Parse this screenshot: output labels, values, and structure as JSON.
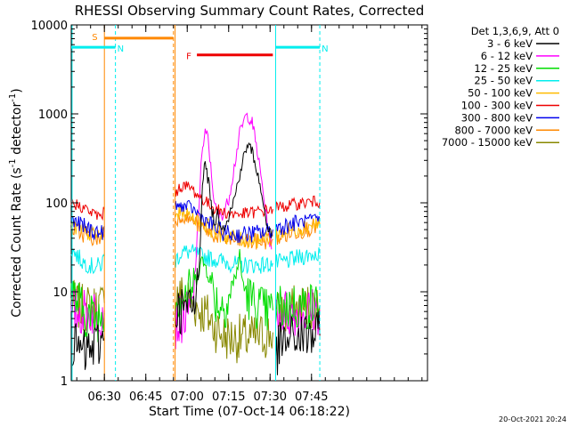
{
  "chart_data": {
    "type": "line",
    "title": "RHESSI Observing Summary Count Rates, Corrected",
    "xlabel": "Start Time (07-Oct-14 06:18:22)",
    "ylabel": "Corrected Count Rate (s⁻¹ detector⁻¹)",
    "ylabel_parts": {
      "main": "Corrected Count Rate (s",
      "exp1": "-1",
      "mid": " detector",
      "exp2": "-1",
      "end": ")"
    },
    "y_scale": "log",
    "ylim": [
      1,
      10000
    ],
    "x_range_min": [
      0,
      129
    ],
    "x_ticks": [
      {
        "label": "06:30",
        "min": 12
      },
      {
        "label": "06:45",
        "min": 27
      },
      {
        "label": "07:00",
        "min": 42
      },
      {
        "label": "07:15",
        "min": 57
      },
      {
        "label": "07:30",
        "min": 72
      },
      {
        "label": "07:45",
        "min": 87
      }
    ],
    "y_ticks": [
      {
        "label": "1",
        "value": 1
      },
      {
        "label": "10",
        "value": 10
      },
      {
        "label": "100",
        "value": 100
      },
      {
        "label": "1000",
        "value": 1000
      },
      {
        "label": "10000",
        "value": 10000
      }
    ],
    "legend": {
      "title": "Det 1,3,6,9, Att 0",
      "entries": [
        {
          "label": "3 - 6 keV",
          "color": "#000000"
        },
        {
          "label": "6 - 12 keV",
          "color": "#ff00ff"
        },
        {
          "label": "12 - 25 keV",
          "color": "#00dd00"
        },
        {
          "label": "25 - 50 keV",
          "color": "#00eeee"
        },
        {
          "label": "50 - 100 keV",
          "color": "#ffbb00"
        },
        {
          "label": "100 - 300 keV",
          "color": "#ee0000"
        },
        {
          "label": "300 - 800 keV",
          "color": "#0000ee"
        },
        {
          "label": "800 - 7000 keV",
          "color": "#ff8800"
        },
        {
          "label": "7000 - 15000 keV",
          "color": "#888800"
        }
      ]
    },
    "flags": [
      {
        "label": "S",
        "color": "#ff8800",
        "x0": 12.0,
        "x1": 37.0,
        "y": 7100
      },
      {
        "label": "N",
        "color": "#00eeee",
        "x0": 0,
        "x1": 16.0,
        "y": 5600
      },
      {
        "label": "N",
        "color": "#00eeee",
        "x0": 74.0,
        "x1": 90.0,
        "y": 5600
      },
      {
        "label": "F",
        "color": "#ee0000",
        "x0": 45.5,
        "x1": 73.0,
        "y": 4600
      }
    ],
    "series": [
      {
        "name": "3 - 6 keV",
        "color": "#000000",
        "segments": [
          [
            [
              0,
              2.5
            ],
            [
              5,
              2.0
            ],
            [
              9,
              2.5
            ],
            [
              12,
              3.0
            ]
          ],
          [
            [
              37.5,
              6.2
            ],
            [
              40,
              6.3
            ],
            [
              42,
              6.3
            ],
            [
              43,
              6.4
            ],
            [
              45,
              7.0
            ],
            [
              46.5,
              25
            ],
            [
              47.5,
              180
            ],
            [
              48.5,
              280
            ],
            [
              50,
              150
            ],
            [
              51,
              80
            ],
            [
              52,
              60
            ],
            [
              53,
              75
            ],
            [
              54,
              62
            ],
            [
              55,
              55
            ],
            [
              57,
              70
            ],
            [
              59,
              110
            ],
            [
              61,
              210
            ],
            [
              63,
              380
            ],
            [
              64,
              450
            ],
            [
              65.5,
              380
            ],
            [
              67,
              250
            ],
            [
              69,
              120
            ],
            [
              71,
              55
            ],
            [
              72.5,
              40
            ]
          ],
          [
            [
              74,
              2.0
            ],
            [
              76,
              2.5
            ],
            [
              80,
              3.0
            ],
            [
              85,
              3.2
            ],
            [
              90,
              3.2
            ]
          ]
        ]
      },
      {
        "name": "6 - 12 keV",
        "color": "#ff00ff",
        "segments": [
          [
            [
              0,
              6.0
            ],
            [
              5,
              5.8
            ],
            [
              9,
              6.0
            ],
            [
              12,
              6.2
            ]
          ],
          [
            [
              37.5,
              4.0
            ],
            [
              40,
              5.0
            ],
            [
              42,
              5.5
            ],
            [
              44,
              7.0
            ],
            [
              46,
              60
            ],
            [
              47,
              300
            ],
            [
              48.5,
              600
            ],
            [
              49.5,
              550
            ],
            [
              50.5,
              250
            ],
            [
              52,
              90
            ],
            [
              53.5,
              72
            ],
            [
              55,
              75
            ],
            [
              57,
              110
            ],
            [
              59,
              250
            ],
            [
              61,
              600
            ],
            [
              63,
              920
            ],
            [
              64,
              950
            ],
            [
              65.5,
              800
            ],
            [
              67,
              450
            ],
            [
              69,
              170
            ],
            [
              71,
              60
            ],
            [
              72.5,
              30
            ]
          ],
          [
            [
              74,
              6.0
            ],
            [
              80,
              5.8
            ],
            [
              85,
              6.0
            ],
            [
              90,
              6.2
            ]
          ]
        ]
      },
      {
        "name": "12 - 25 keV",
        "color": "#00dd00",
        "segments": [
          [
            [
              0,
              10
            ],
            [
              5,
              5.5
            ],
            [
              9,
              5.0
            ],
            [
              12,
              5.8
            ]
          ],
          [
            [
              37.5,
              8.0
            ],
            [
              40,
              9.0
            ],
            [
              42,
              9.5
            ],
            [
              44,
              11
            ],
            [
              46,
              17
            ],
            [
              47,
              22
            ],
            [
              48.5,
              20
            ],
            [
              50,
              15
            ],
            [
              52,
              8.5
            ],
            [
              54,
              7.0
            ],
            [
              56,
              7.5
            ],
            [
              58,
              10
            ],
            [
              60,
              18
            ],
            [
              61,
              25
            ],
            [
              62,
              13
            ],
            [
              64,
              9.0
            ],
            [
              66,
              7.5
            ],
            [
              68,
              7.0
            ],
            [
              70,
              6.0
            ],
            [
              72,
              6.0
            ],
            [
              73,
              6.2
            ]
          ],
          [
            [
              74,
              6.5
            ],
            [
              80,
              6.8
            ],
            [
              85,
              6.8
            ],
            [
              90,
              7.0
            ]
          ]
        ]
      },
      {
        "name": "25 - 50 keV",
        "color": "#00eeee",
        "segments": [
          [
            [
              0,
              30
            ],
            [
              4,
              22
            ],
            [
              8,
              19
            ],
            [
              11,
              20
            ],
            [
              12,
              25
            ]
          ],
          [
            [
              37.5,
              22
            ],
            [
              40,
              28
            ],
            [
              43,
              28
            ],
            [
              46,
              26
            ],
            [
              50,
              24
            ],
            [
              55,
              22
            ],
            [
              60,
              20
            ],
            [
              65,
              20
            ],
            [
              70,
              20
            ],
            [
              73,
              21
            ]
          ],
          [
            [
              74,
              21
            ],
            [
              78,
              22
            ],
            [
              82,
              24
            ],
            [
              86,
              26
            ],
            [
              90,
              27
            ]
          ]
        ]
      },
      {
        "name": "50 - 100 keV",
        "color": "#ffbb00",
        "segments": [
          [
            [
              0,
              55
            ],
            [
              4,
              48
            ],
            [
              8,
              44
            ],
            [
              11,
              43
            ],
            [
              12,
              55
            ]
          ],
          [
            [
              37.5,
              70
            ],
            [
              40,
              80
            ],
            [
              43,
              72
            ],
            [
              47,
              62
            ],
            [
              51,
              50
            ],
            [
              55,
              43
            ],
            [
              60,
              40
            ],
            [
              65,
              38
            ],
            [
              70,
              40
            ],
            [
              73,
              42
            ]
          ],
          [
            [
              74,
              44
            ],
            [
              78,
              48
            ],
            [
              82,
              52
            ],
            [
              86,
              56
            ],
            [
              90,
              58
            ]
          ]
        ]
      },
      {
        "name": "100 - 300 keV",
        "color": "#ee0000",
        "segments": [
          [
            [
              0,
              100
            ],
            [
              4,
              90
            ],
            [
              8,
              75
            ],
            [
              11,
              70
            ],
            [
              12,
              85
            ]
          ],
          [
            [
              37.5,
              130
            ],
            [
              40,
              155
            ],
            [
              43,
              150
            ],
            [
              46,
              120
            ],
            [
              50,
              95
            ],
            [
              54,
              80
            ],
            [
              58,
              75
            ],
            [
              62,
              75
            ],
            [
              66,
              78
            ],
            [
              70,
              82
            ],
            [
              73,
              85
            ]
          ],
          [
            [
              74,
              88
            ],
            [
              78,
              92
            ],
            [
              82,
              98
            ],
            [
              86,
              102
            ],
            [
              90,
              103
            ]
          ]
        ]
      },
      {
        "name": "300 - 800 keV",
        "color": "#0000ee",
        "segments": [
          [
            [
              0,
              65
            ],
            [
              4,
              55
            ],
            [
              8,
              48
            ],
            [
              11,
              45
            ],
            [
              12,
              55
            ]
          ],
          [
            [
              37.5,
              90
            ],
            [
              40,
              92
            ],
            [
              43,
              90
            ],
            [
              46,
              75
            ],
            [
              50,
              58
            ],
            [
              54,
              48
            ],
            [
              58,
              44
            ],
            [
              62,
              44
            ],
            [
              66,
              45
            ],
            [
              70,
              47
            ],
            [
              73,
              50
            ]
          ],
          [
            [
              74,
              52
            ],
            [
              78,
              56
            ],
            [
              82,
              60
            ],
            [
              86,
              64
            ],
            [
              90,
              65
            ]
          ]
        ]
      },
      {
        "name": "800 - 7000 keV",
        "color": "#ff8800",
        "segments": [
          [
            [
              0,
              52
            ],
            [
              4,
              45
            ],
            [
              8,
              40
            ],
            [
              11,
              40
            ],
            [
              12,
              48
            ]
          ],
          [
            [
              37.5,
              62
            ],
            [
              40,
              70
            ],
            [
              43,
              65
            ],
            [
              47,
              55
            ],
            [
              51,
              45
            ],
            [
              55,
              40
            ],
            [
              60,
              37
            ],
            [
              65,
              36
            ],
            [
              70,
              37
            ],
            [
              73,
              39
            ]
          ],
          [
            [
              74,
              40
            ],
            [
              78,
              44
            ],
            [
              82,
              48
            ],
            [
              86,
              52
            ],
            [
              90,
              55
            ]
          ]
        ]
      },
      {
        "name": "7000 - 15000 keV",
        "color": "#888800",
        "segments": [
          [
            [
              0,
              7.5
            ],
            [
              4,
              6.5
            ],
            [
              8,
              6.5
            ],
            [
              11,
              7.0
            ],
            [
              12,
              7.5
            ]
          ],
          [
            [
              37.5,
              9.5
            ],
            [
              40,
              9.0
            ],
            [
              43,
              8.0
            ],
            [
              46,
              6.5
            ],
            [
              49,
              5.5
            ],
            [
              52,
              4.0
            ],
            [
              55,
              3.2
            ],
            [
              58,
              3.0
            ],
            [
              62,
              3.0
            ],
            [
              66,
              3.0
            ],
            [
              70,
              3.2
            ],
            [
              73,
              3.5
            ]
          ],
          [
            [
              74,
              5.5
            ],
            [
              78,
              6.0
            ],
            [
              82,
              6.5
            ],
            [
              86,
              6.8
            ],
            [
              90,
              7.0
            ]
          ]
        ]
      }
    ]
  },
  "footer": {
    "date": "20-Oct-2021 20:24"
  }
}
